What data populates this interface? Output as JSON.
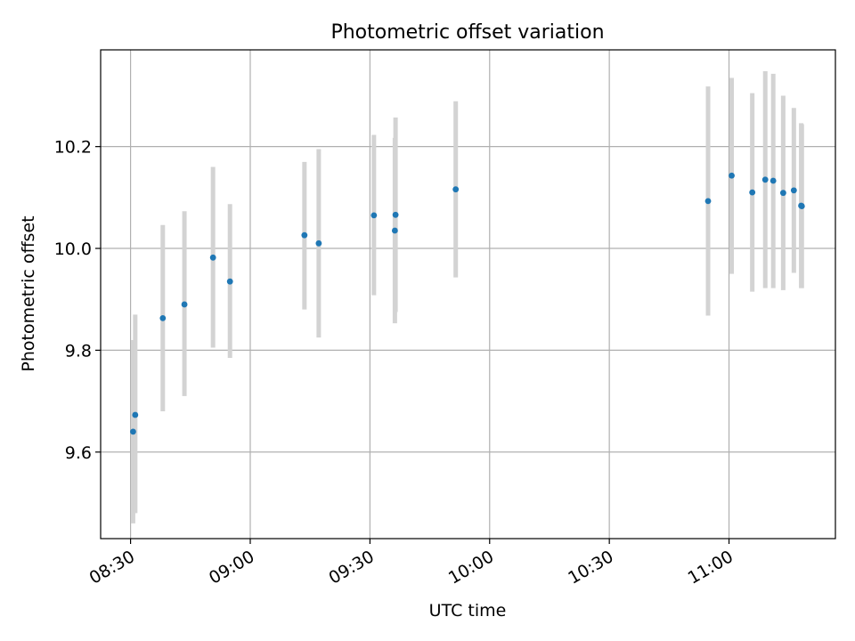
{
  "chart_data": {
    "type": "scatter",
    "title": "Photometric offset variation",
    "xlabel": "UTC time",
    "ylabel": "Photometric offset",
    "xlim": [
      "08:22:30",
      "11:26:40"
    ],
    "ylim": [
      9.43,
      10.39
    ],
    "grid": true,
    "x_ticks": [
      "08:30",
      "09:00",
      "09:30",
      "10:00",
      "10:30",
      "11:00"
    ],
    "y_ticks": [
      "9.6",
      "9.8",
      "10.0",
      "10.2"
    ],
    "colors": {
      "marker": "#1f77b4",
      "errorbar": "#d3d3d3",
      "grid": "#b0b0b0"
    },
    "series": [
      {
        "points": [
          {
            "t": "08:30:38",
            "y": 9.64,
            "ylo": 9.46,
            "yhi": 9.82
          },
          {
            "t": "08:31:10",
            "y": 9.673,
            "ylo": 9.48,
            "yhi": 9.87
          },
          {
            "t": "08:38:05",
            "y": 9.863,
            "ylo": 9.68,
            "yhi": 10.046
          },
          {
            "t": "08:43:30",
            "y": 9.89,
            "ylo": 9.71,
            "yhi": 10.073
          },
          {
            "t": "08:50:40",
            "y": 9.982,
            "ylo": 9.805,
            "yhi": 10.16
          },
          {
            "t": "08:54:55",
            "y": 9.935,
            "ylo": 9.785,
            "yhi": 10.087
          },
          {
            "t": "09:13:35",
            "y": 10.026,
            "ylo": 9.88,
            "yhi": 10.17
          },
          {
            "t": "09:17:10",
            "y": 10.01,
            "ylo": 9.825,
            "yhi": 10.195
          },
          {
            "t": "09:31:00",
            "y": 10.065,
            "ylo": 9.908,
            "yhi": 10.223
          },
          {
            "t": "09:36:15",
            "y": 10.035,
            "ylo": 9.853,
            "yhi": 10.217
          },
          {
            "t": "09:36:25",
            "y": 10.066,
            "ylo": 9.875,
            "yhi": 10.257
          },
          {
            "t": "09:51:30",
            "y": 10.116,
            "ylo": 9.943,
            "yhi": 10.289
          },
          {
            "t": "10:54:45",
            "y": 10.093,
            "ylo": 9.868,
            "yhi": 10.318
          },
          {
            "t": "11:00:40",
            "y": 10.143,
            "ylo": 9.95,
            "yhi": 10.335
          },
          {
            "t": "11:05:50",
            "y": 10.11,
            "ylo": 9.915,
            "yhi": 10.305
          },
          {
            "t": "11:09:05",
            "y": 10.135,
            "ylo": 9.922,
            "yhi": 10.348
          },
          {
            "t": "11:11:05",
            "y": 10.133,
            "ylo": 9.922,
            "yhi": 10.343
          },
          {
            "t": "11:13:35",
            "y": 10.109,
            "ylo": 9.918,
            "yhi": 10.3
          },
          {
            "t": "11:16:15",
            "y": 10.114,
            "ylo": 9.952,
            "yhi": 10.276
          },
          {
            "t": "11:18:05",
            "y": 10.084,
            "ylo": 9.922,
            "yhi": 10.246
          },
          {
            "t": "11:18:15",
            "y": 10.083,
            "ylo": 9.922,
            "yhi": 10.244
          }
        ]
      }
    ]
  }
}
